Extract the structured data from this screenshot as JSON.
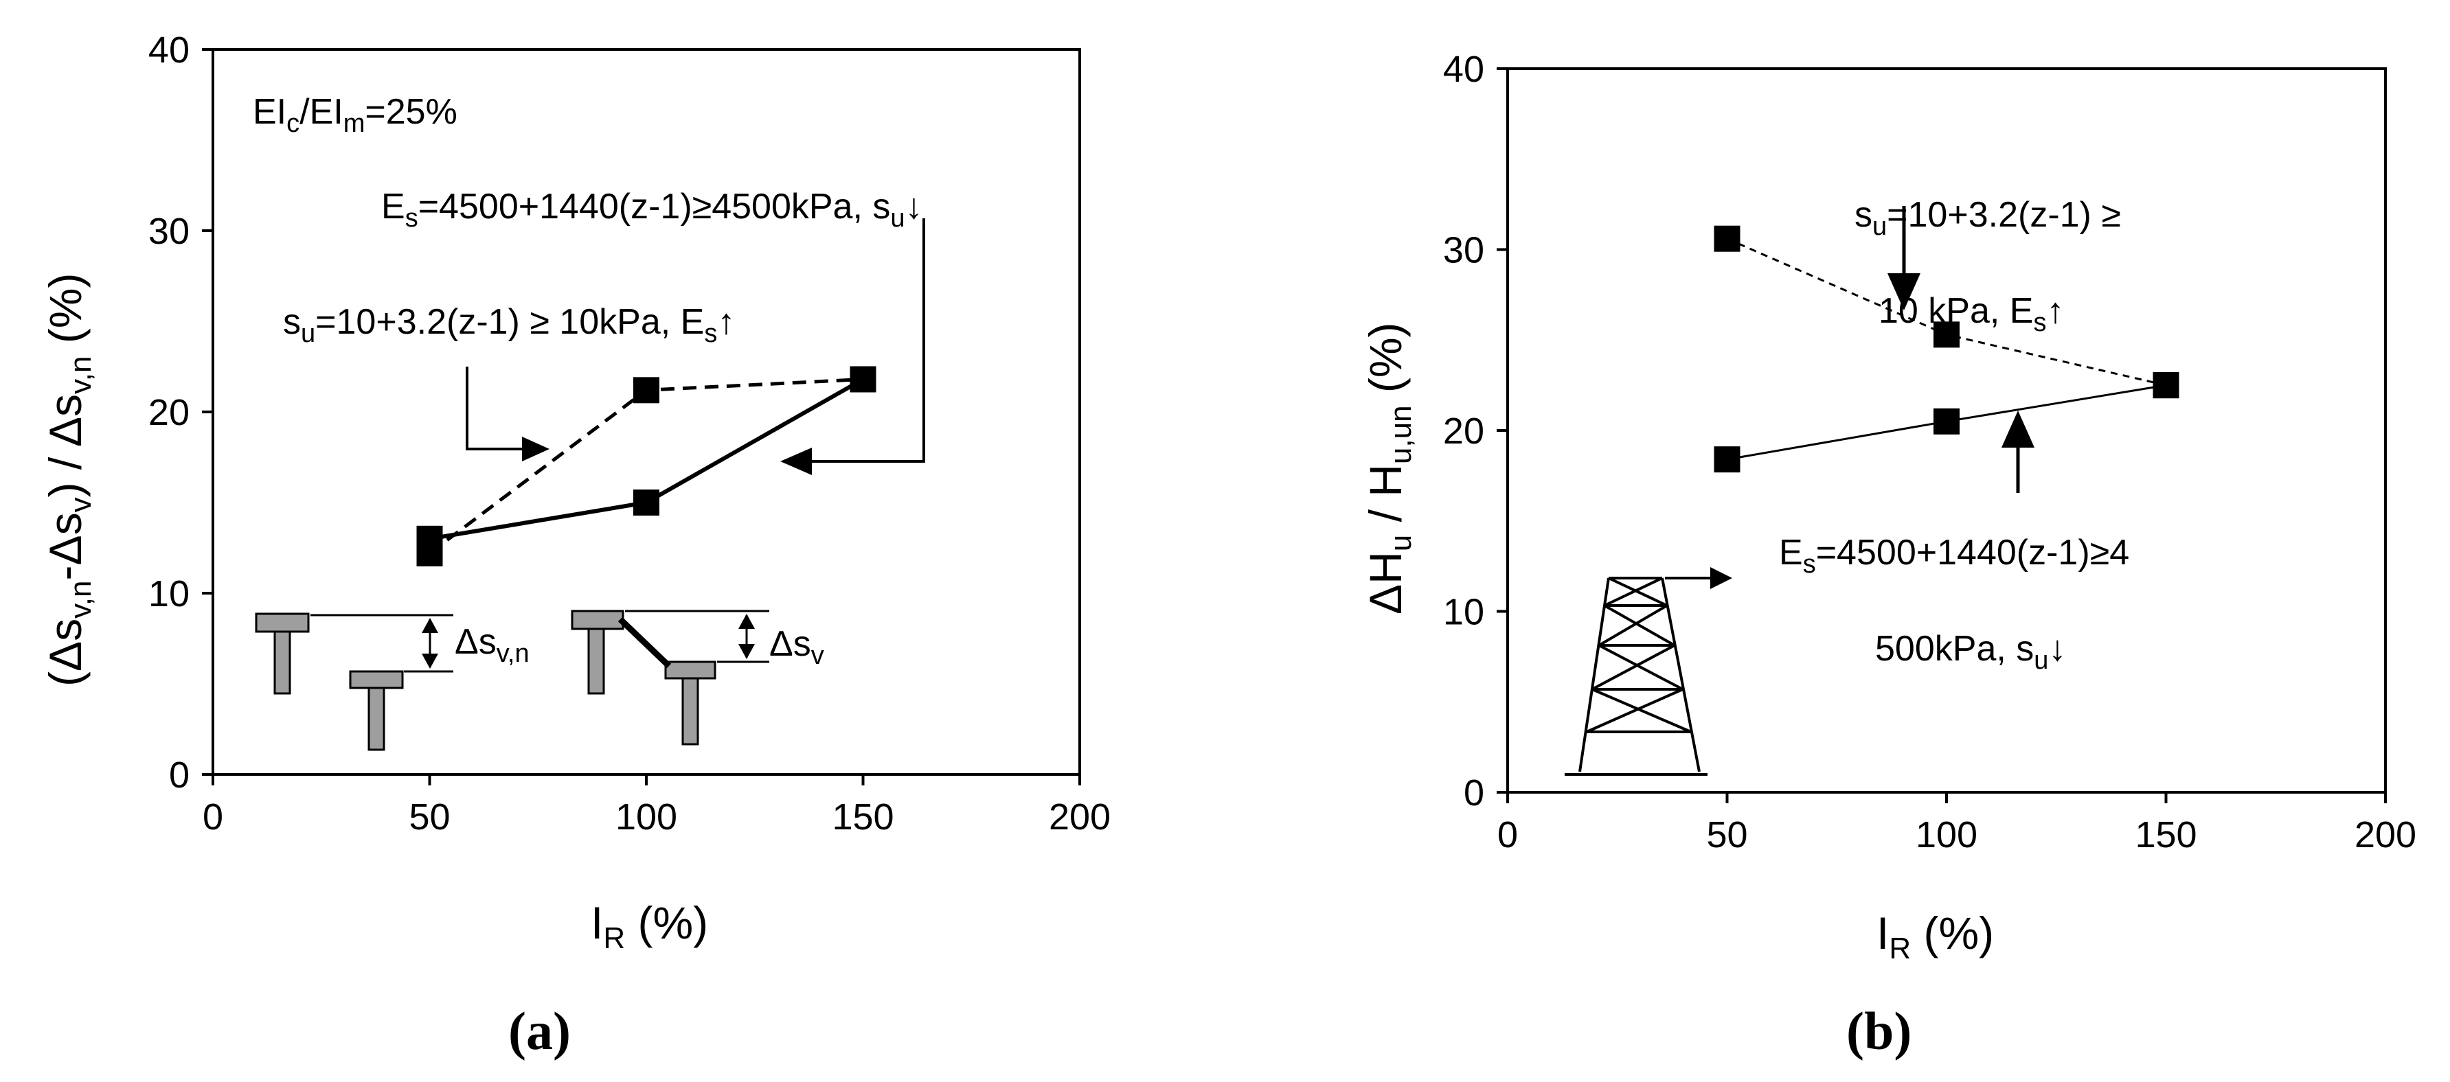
{
  "chart_data": [
    {
      "panel": "a",
      "type": "line",
      "panel_label": "(a)",
      "xlabel": "I",
      "xlabel_sub": "R",
      "xlabel_unit": " (%)",
      "ylabel": "(Δs",
      "ylabel_sub1": "v,n",
      "ylabel_mid": "-Δs",
      "ylabel_sub2": "v",
      "ylabel_mid2": ") / Δs",
      "ylabel_sub3": "v,n",
      "ylabel_unit": " (%)",
      "xlim": [
        0,
        200
      ],
      "ylim": [
        0,
        40
      ],
      "xticks": [
        "0",
        "50",
        "100",
        "150",
        "200"
      ],
      "yticks": [
        "0",
        "10",
        "20",
        "30",
        "40"
      ],
      "grid": false,
      "series": [
        {
          "style": "solid",
          "x": [
            50,
            100,
            150
          ],
          "y": [
            13.0,
            15.0,
            21.8
          ]
        },
        {
          "style": "dashed",
          "x": [
            50,
            100,
            150
          ],
          "y": [
            12.2,
            21.2,
            21.8
          ]
        }
      ],
      "annotations": {
        "ratio_main": "EI",
        "ratio_sub1": "c",
        "ratio_mid": "/EI",
        "ratio_sub2": "m",
        "ratio_tail": "=25%",
        "es_main": "E",
        "es_sub": "s",
        "es_tail": "=4500+1440(z-1)≥4500kPa,  s",
        "es_sub2": "u",
        "es_arrow": "↓",
        "su_main": "s",
        "su_sub": "u",
        "su_tail": "=10+3.2(z-1) ≥ 10kPa,  E",
        "su_sub2": "s",
        "su_arrow": "↑",
        "dsvn_main": "Δs",
        "dsvn_sub": "v,n",
        "dsv_main": "Δs",
        "dsv_sub": "v"
      }
    },
    {
      "panel": "b",
      "type": "line",
      "panel_label": "(b)",
      "xlabel": "I",
      "xlabel_sub": "R",
      "xlabel_unit": " (%)",
      "ylabel": "ΔH",
      "ylabel_sub1": "u",
      "ylabel_mid": " / H",
      "ylabel_sub2": "u,un",
      "ylabel_unit": " (%)",
      "xlim": [
        0,
        200
      ],
      "ylim": [
        0,
        40
      ],
      "xticks": [
        "0",
        "50",
        "100",
        "150",
        "200"
      ],
      "yticks": [
        "0",
        "10",
        "20",
        "30",
        "40"
      ],
      "grid": false,
      "series": [
        {
          "style": "solid",
          "x": [
            50,
            100,
            150
          ],
          "y": [
            18.4,
            20.5,
            22.5
          ]
        },
        {
          "style": "dashed",
          "x": [
            50,
            100,
            150
          ],
          "y": [
            30.6,
            25.3,
            22.5
          ]
        }
      ],
      "annotations": {
        "su_main": "s",
        "su_sub": "u",
        "su_tail": "=10+3.2(z-1)  ≥",
        "su_line2": "10  kPa,  E",
        "su_sub2": "s",
        "su_arrow": "↑",
        "es_main": "E",
        "es_sub": "s",
        "es_tail": "=4500+1440(z-1)≥4",
        "es_line2": "500kPa,  s",
        "es_sub2": "u",
        "es_arrow": "↓"
      }
    }
  ]
}
